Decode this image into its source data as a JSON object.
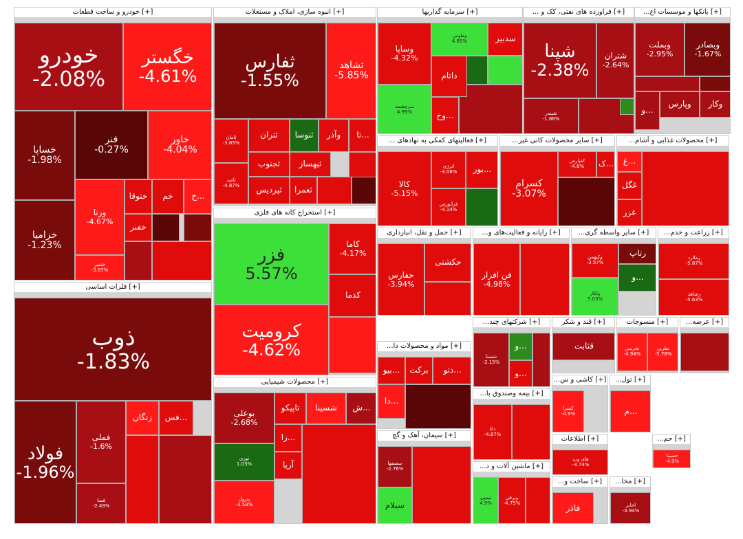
{
  "colors": {
    "dark_red": "#7a0b0b",
    "deep_red": "#5b0606",
    "mid_red": "#a80f14",
    "bright_red": "#e00c0c",
    "vivid_red": "#ff1a1a",
    "bright_green": "#3de03a",
    "dark_green": "#1a6a14",
    "mid_green": "#2f8a1e"
  },
  "sectors": [
    {
      "title": "خودرو و ساخت قطعات",
      "prefix": "[+]",
      "tiles": [
        {
          "symbol": "خودرو",
          "change": "-2.08%",
          "size": "xl"
        },
        {
          "symbol": "خگستر",
          "change": "-4.61%",
          "size": "l"
        },
        {
          "symbol": "خساپا",
          "change": "-1.98%",
          "size": "m"
        },
        {
          "symbol": "فنر",
          "change": "-0.27%",
          "size": "m"
        },
        {
          "symbol": "خاور",
          "change": "-4.04%",
          "size": "m"
        },
        {
          "symbol": "ورنا",
          "change": "-4.67%",
          "size": "s"
        },
        {
          "symbol": "ختوقا",
          "change": "",
          "size": "s"
        },
        {
          "symbol": "خم",
          "change": "",
          "size": "s"
        },
        {
          "symbol": "خ...",
          "change": "",
          "size": "s"
        },
        {
          "symbol": "خفنر",
          "change": "",
          "size": "s"
        },
        {
          "symbol": "خزامیا",
          "change": "-1.23%",
          "size": "m"
        },
        {
          "symbol": "ختمیر",
          "change": "-3.67%",
          "size": "xs"
        }
      ]
    },
    {
      "title": "انبوه سازی، املاک و مستغلات",
      "prefix": "[+]",
      "tiles": [
        {
          "symbol": "ثفارس",
          "change": "-1.55%",
          "size": "l"
        },
        {
          "symbol": "ثشاهد",
          "change": "-5.85%",
          "size": "m"
        },
        {
          "symbol": "ثتران",
          "change": "",
          "size": "s"
        },
        {
          "symbol": "ثنوسا",
          "change": "",
          "size": "s"
        },
        {
          "symbol": "وآذر",
          "change": "",
          "size": "s"
        },
        {
          "symbol": "تا...",
          "change": "",
          "size": "s"
        },
        {
          "symbol": "ثجنوب",
          "change": "",
          "size": "s"
        },
        {
          "symbol": "ثبهساز",
          "change": "",
          "size": "s"
        },
        {
          "symbol": "ثپردیس",
          "change": "",
          "size": "s"
        },
        {
          "symbol": "ثعمرا",
          "change": "",
          "size": "s"
        },
        {
          "symbol": "ثامان",
          "change": "-3.85%",
          "size": "xs"
        },
        {
          "symbol": "ثامید",
          "change": "-4.87%",
          "size": "xs"
        }
      ]
    },
    {
      "title": "سرمایه گذاریها",
      "prefix": "[+]",
      "tiles": [
        {
          "symbol": "وساپا",
          "change": "-4.32%",
          "size": "s"
        },
        {
          "symbol": "وطوس",
          "change": "4.85%",
          "size": "xs"
        },
        {
          "symbol": "سدبیر",
          "change": "",
          "size": "s"
        },
        {
          "symbol": "داتام",
          "change": "",
          "size": "s"
        },
        {
          "symbol": "سرچشمه",
          "change": "4.99%",
          "size": "xs"
        },
        {
          "symbol": "وخ...",
          "change": "",
          "size": "s"
        }
      ]
    },
    {
      "title": "فراورده های نفتی، کک و ...",
      "prefix": "[+]",
      "tiles": [
        {
          "symbol": "شپنا",
          "change": "-2.38%",
          "size": "l"
        },
        {
          "symbol": "شتران",
          "change": "-2.64%",
          "size": "s"
        },
        {
          "symbol": "شبندر",
          "change": "-1.86%",
          "size": "xs"
        }
      ]
    },
    {
      "title": "بانکها و موسسات اع...",
      "prefix": "[+]",
      "tiles": [
        {
          "symbol": "وبملت",
          "change": "-2.95%",
          "size": "s"
        },
        {
          "symbol": "وبصادر",
          "change": "-1.67%",
          "size": "s"
        },
        {
          "symbol": "وپارس",
          "change": "",
          "size": "s"
        },
        {
          "symbol": "وکار",
          "change": "",
          "size": "s"
        },
        {
          "symbol": "و...",
          "change": "",
          "size": "s"
        }
      ]
    },
    {
      "title": "فعالیتهای کمکی به نهادهای ...",
      "prefix": "[+]",
      "tiles": [
        {
          "symbol": "کالا",
          "change": "-5.15%",
          "size": "s"
        },
        {
          "symbol": "انرژی",
          "change": "-3.08%",
          "size": "xs"
        },
        {
          "symbol": "بور...",
          "change": "",
          "size": "s"
        },
        {
          "symbol": "فرابورس",
          "change": "-4.14%",
          "size": "xs"
        }
      ]
    },
    {
      "title": "سایر محصولات کانی غیر...",
      "prefix": "[+]",
      "tiles": [
        {
          "symbol": "کسرام",
          "change": "-3.07%",
          "size": "m"
        },
        {
          "symbol": "کفپارس",
          "change": "-4.8%",
          "size": "xs"
        },
        {
          "symbol": "ک...",
          "change": "",
          "size": "s"
        }
      ]
    },
    {
      "title": "محصولات غذایی و آشام...",
      "prefix": "[+]",
      "tiles": [
        {
          "symbol": "غ...",
          "change": "",
          "size": "s"
        },
        {
          "symbol": "غگل",
          "change": "",
          "size": "s"
        },
        {
          "symbol": "غزر",
          "change": "",
          "size": "s"
        }
      ]
    },
    {
      "title": "استخراج کانه های فلزی",
      "prefix": "[+]",
      "tiles": [
        {
          "symbol": "فزر",
          "change": "5.57%",
          "size": "l"
        },
        {
          "symbol": "کاما",
          "change": "-4.17%",
          "size": "s"
        },
        {
          "symbol": "کدما",
          "change": "",
          "size": "s"
        },
        {
          "symbol": "کرومیت",
          "change": "-4.62%",
          "size": "l"
        }
      ]
    },
    {
      "title": "حمل و نقل، انبارداری",
      "prefix": "[+]",
      "tiles": [
        {
          "symbol": "حفارس",
          "change": "-3.94%",
          "size": "s"
        },
        {
          "symbol": "حکشتی",
          "change": "",
          "size": "s"
        },
        {
          "symbol": "تورپل",
          "change": "",
          "size": "s"
        }
      ]
    },
    {
      "title": "رایانه و فعالیت‌های و...",
      "prefix": "[+]",
      "tiles": [
        {
          "symbol": "فن افزار",
          "change": "-4.98%",
          "size": "s"
        }
      ]
    },
    {
      "title": "سایر واسطه گری...",
      "prefix": "[+]",
      "tiles": [
        {
          "symbol": "رتاپ",
          "change": "",
          "size": "s"
        },
        {
          "symbol": "وکبهمن",
          "change": "-3.57%",
          "size": "xs"
        },
        {
          "symbol": "و...",
          "change": "",
          "size": "s"
        },
        {
          "symbol": "ولکار",
          "change": "5.03%",
          "size": "xs"
        }
      ]
    },
    {
      "title": "زراعت و خدم...",
      "prefix": "[+]",
      "tiles": [
        {
          "symbol": "زملارد",
          "change": "-5.87%",
          "size": "xs"
        },
        {
          "symbol": "زشاهد",
          "change": "-5.63%",
          "size": "xs"
        }
      ]
    },
    {
      "title": "فلزات اساسی",
      "prefix": "[+]",
      "tiles": [
        {
          "symbol": "ذوب",
          "change": "-1.83%",
          "size": "xl"
        },
        {
          "symbol": "فولاد",
          "change": "-1.96%",
          "size": "l"
        },
        {
          "symbol": "فملی",
          "change": "-1.6%",
          "size": "s"
        },
        {
          "symbol": "زنگان",
          "change": "",
          "size": "s"
        },
        {
          "symbol": "فس...",
          "change": "",
          "size": "s"
        },
        {
          "symbol": "فسا",
          "change": "-2.49%",
          "size": "xs"
        }
      ]
    },
    {
      "title": "محصولات شیمیایی",
      "prefix": "[+]",
      "tiles": [
        {
          "symbol": "بوعلی",
          "change": "-2.68%",
          "size": "s"
        },
        {
          "symbol": "تاپیکو",
          "change": "",
          "size": "s"
        },
        {
          "symbol": "شسینا",
          "change": "",
          "size": "s"
        },
        {
          "symbol": "ش...",
          "change": "",
          "size": "s"
        },
        {
          "symbol": "زا...",
          "change": "",
          "size": "s"
        },
        {
          "symbol": "نوری",
          "change": "1.03%",
          "size": "xs"
        },
        {
          "symbol": "آریا",
          "change": "",
          "size": "s"
        },
        {
          "symbol": "پترول",
          "change": "-3.53%",
          "size": "xs"
        }
      ]
    },
    {
      "title": "مواد و محصولات دا...",
      "prefix": "[+]",
      "tiles": [
        {
          "symbol": "بیو...",
          "change": "",
          "size": "s"
        },
        {
          "symbol": "برکت",
          "change": "",
          "size": "s"
        },
        {
          "symbol": "دتو...",
          "change": "",
          "size": "s"
        },
        {
          "symbol": "دا...",
          "change": "",
          "size": "s"
        }
      ]
    },
    {
      "title": "شرکتهای چند...",
      "prefix": "[+]",
      "tiles": [
        {
          "symbol": "شستا",
          "change": "-2.15%",
          "size": "xs"
        },
        {
          "symbol": "و...",
          "change": "",
          "size": "s"
        },
        {
          "symbol": "و...",
          "change": "",
          "size": "s"
        }
      ]
    },
    {
      "title": "قند و شکر",
      "prefix": "[+]",
      "tiles": [
        {
          "symbol": "قثابت",
          "change": "",
          "size": "s"
        }
      ]
    },
    {
      "title": "منسوجات",
      "prefix": "[+]",
      "tiles": [
        {
          "symbol": "نخریس",
          "change": "-4.94%",
          "size": "xs"
        },
        {
          "symbol": "نطرین",
          "change": "-5.78%",
          "size": "xs"
        }
      ]
    },
    {
      "title": "عرضه...",
      "prefix": "[+]",
      "tiles": []
    },
    {
      "title": "سیمان، آهک و گچ",
      "prefix": "[+]",
      "tiles": [
        {
          "symbol": "سیلام",
          "change": "",
          "size": "s"
        },
        {
          "symbol": "سصفها",
          "change": "-2.76%",
          "size": "xs"
        }
      ]
    },
    {
      "title": "بیمه وصندوق با...",
      "prefix": "[+]",
      "tiles": [
        {
          "symbol": "دانا",
          "change": "-4.87%",
          "size": "xs"
        }
      ]
    },
    {
      "title": "ماشین آلات و د...",
      "prefix": "[+]",
      "tiles": [
        {
          "symbol": "تپمپی",
          "change": "4.9%",
          "size": "xs"
        },
        {
          "symbol": "وبرقی",
          "change": "-4.75%",
          "size": "xs"
        }
      ]
    },
    {
      "title": "کاشی و س...",
      "prefix": "[+]",
      "tiles": [
        {
          "symbol": "کسرا",
          "change": "-4.9%",
          "size": "xs"
        }
      ]
    },
    {
      "title": "تول...",
      "prefix": "[+]",
      "tiles": [
        {
          "symbol": "م...",
          "change": "",
          "size": "s"
        }
      ]
    },
    {
      "title": "اطلاعات",
      "prefix": "[+]",
      "tiles": [
        {
          "symbol": "های وب",
          "change": "-3.74%",
          "size": "xs"
        }
      ]
    },
    {
      "title": "ساخت و...",
      "prefix": "[+]",
      "tiles": [
        {
          "symbol": "فاذر",
          "change": "",
          "size": "s"
        }
      ]
    },
    {
      "title": "مخا...",
      "prefix": "[+]",
      "tiles": [
        {
          "symbol": "اخابر",
          "change": "-3.94%",
          "size": "xs"
        }
      ]
    },
    {
      "title": "حم...",
      "prefix": "[+]",
      "tiles": [
        {
          "symbol": "حسینا",
          "change": "-4.9%",
          "size": "xs"
        }
      ]
    }
  ]
}
